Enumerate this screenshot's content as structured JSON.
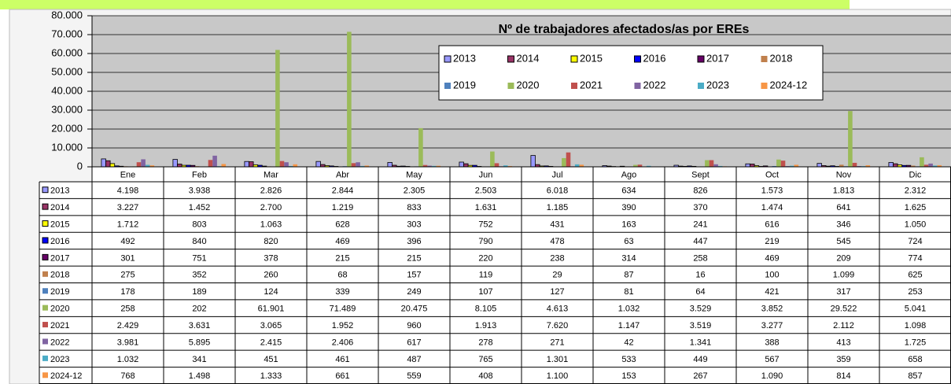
{
  "chart_data": {
    "type": "bar",
    "title": "Nº de trabajadores afectados/as por EREs",
    "categories": [
      "Ene",
      "Feb",
      "Mar",
      "Abr",
      "May",
      "Jun",
      "Jul",
      "Ago",
      "Sept",
      "Oct",
      "Nov",
      "Dic"
    ],
    "ylim": [
      0,
      80000
    ],
    "yticks": [
      0,
      {
        "value": 10000,
        "label": "10.000"
      },
      {
        "value": 20000,
        "label": "20.000"
      },
      {
        "value": 30000,
        "label": "30.000"
      },
      {
        "value": 40000,
        "label": "40.000"
      },
      {
        "value": 50000,
        "label": "50.000"
      },
      {
        "value": 60000,
        "label": "60.000"
      },
      {
        "value": 70000,
        "label": "70.000"
      },
      {
        "value": 80000,
        "label": "80.000"
      }
    ],
    "grid": true,
    "legend": "top-right",
    "series": [
      {
        "name": "2013",
        "color": "#9999ff",
        "outline": "#000000",
        "values": [
          4198,
          3938,
          2826,
          2844,
          2305,
          2503,
          6018,
          634,
          826,
          1573,
          1813,
          2312
        ],
        "value_labels": [
          "4.198",
          "3.938",
          "2.826",
          "2.844",
          "2.305",
          "2.503",
          "6.018",
          "634",
          "826",
          "1.573",
          "1.813",
          "2.312"
        ]
      },
      {
        "name": "2014",
        "color": "#993366",
        "outline": "#000000",
        "values": [
          3227,
          1452,
          2700,
          1219,
          833,
          1631,
          1185,
          390,
          370,
          1474,
          641,
          1625
        ],
        "value_labels": [
          "3.227",
          "1.452",
          "2.700",
          "1.219",
          "833",
          "1.631",
          "1.185",
          "390",
          "370",
          "1.474",
          "641",
          "1.625"
        ]
      },
      {
        "name": "2015",
        "color": "#ffff00",
        "outline": "#000000",
        "values": [
          1712,
          803,
          1063,
          628,
          303,
          752,
          431,
          163,
          241,
          616,
          346,
          1050
        ],
        "value_labels": [
          "1.712",
          "803",
          "1.063",
          "628",
          "303",
          "752",
          "431",
          "163",
          "241",
          "616",
          "346",
          "1.050"
        ]
      },
      {
        "name": "2016",
        "color": "#0000ff",
        "outline": "#000000",
        "values": [
          492,
          840,
          820,
          469,
          396,
          790,
          478,
          63,
          447,
          219,
          545,
          724
        ],
        "value_labels": [
          "492",
          "840",
          "820",
          "469",
          "396",
          "790",
          "478",
          "63",
          "447",
          "219",
          "545",
          "724"
        ]
      },
      {
        "name": "2017",
        "color": "#660066",
        "outline": "#000000",
        "values": [
          301,
          751,
          378,
          215,
          215,
          220,
          238,
          314,
          258,
          469,
          209,
          774
        ],
        "value_labels": [
          "301",
          "751",
          "378",
          "215",
          "215",
          "220",
          "238",
          "314",
          "258",
          "469",
          "209",
          "774"
        ]
      },
      {
        "name": "2018",
        "color": "#c0804d",
        "values": [
          275,
          352,
          260,
          68,
          157,
          119,
          29,
          87,
          16,
          100,
          1099,
          625
        ],
        "value_labels": [
          "275",
          "352",
          "260",
          "68",
          "157",
          "119",
          "29",
          "87",
          "16",
          "100",
          "1.099",
          "625"
        ]
      },
      {
        "name": "2019",
        "color": "#4f81bd",
        "values": [
          178,
          189,
          124,
          339,
          249,
          107,
          127,
          81,
          64,
          421,
          317,
          253
        ],
        "value_labels": [
          "178",
          "189",
          "124",
          "339",
          "249",
          "107",
          "127",
          "81",
          "64",
          "421",
          "317",
          "253"
        ]
      },
      {
        "name": "2020",
        "color": "#9bbb59",
        "values": [
          258,
          202,
          61901,
          71489,
          20475,
          8105,
          4613,
          1032,
          3529,
          3852,
          29522,
          5041
        ],
        "value_labels": [
          "258",
          "202",
          "61.901",
          "71.489",
          "20.475",
          "8.105",
          "4.613",
          "1.032",
          "3.529",
          "3.852",
          "29.522",
          "5.041"
        ]
      },
      {
        "name": "2021",
        "color": "#c0504d",
        "values": [
          2429,
          3631,
          3065,
          1952,
          960,
          1913,
          7620,
          1147,
          3519,
          3277,
          2112,
          1098
        ],
        "value_labels": [
          "2.429",
          "3.631",
          "3.065",
          "1.952",
          "960",
          "1.913",
          "7.620",
          "1.147",
          "3.519",
          "3.277",
          "2.112",
          "1.098"
        ]
      },
      {
        "name": "2022",
        "color": "#8064a2",
        "values": [
          3981,
          5895,
          2415,
          2406,
          617,
          278,
          271,
          42,
          1341,
          388,
          413,
          1725
        ],
        "value_labels": [
          "3.981",
          "5.895",
          "2.415",
          "2.406",
          "617",
          "278",
          "271",
          "42",
          "1.341",
          "388",
          "413",
          "1.725"
        ]
      },
      {
        "name": "2023",
        "color": "#4bacc6",
        "values": [
          1032,
          341,
          451,
          461,
          487,
          765,
          1301,
          533,
          449,
          567,
          359,
          658
        ],
        "value_labels": [
          "1.032",
          "341",
          "451",
          "461",
          "487",
          "765",
          "1.301",
          "533",
          "449",
          "567",
          "359",
          "658"
        ]
      },
      {
        "name": "2024-12",
        "color": "#f79646",
        "values": [
          768,
          1498,
          1333,
          661,
          559,
          408,
          1100,
          153,
          267,
          1090,
          814,
          857
        ],
        "value_labels": [
          "768",
          "1.498",
          "1.333",
          "661",
          "559",
          "408",
          "1.100",
          "153",
          "267",
          "1.090",
          "814",
          "857"
        ]
      }
    ]
  }
}
